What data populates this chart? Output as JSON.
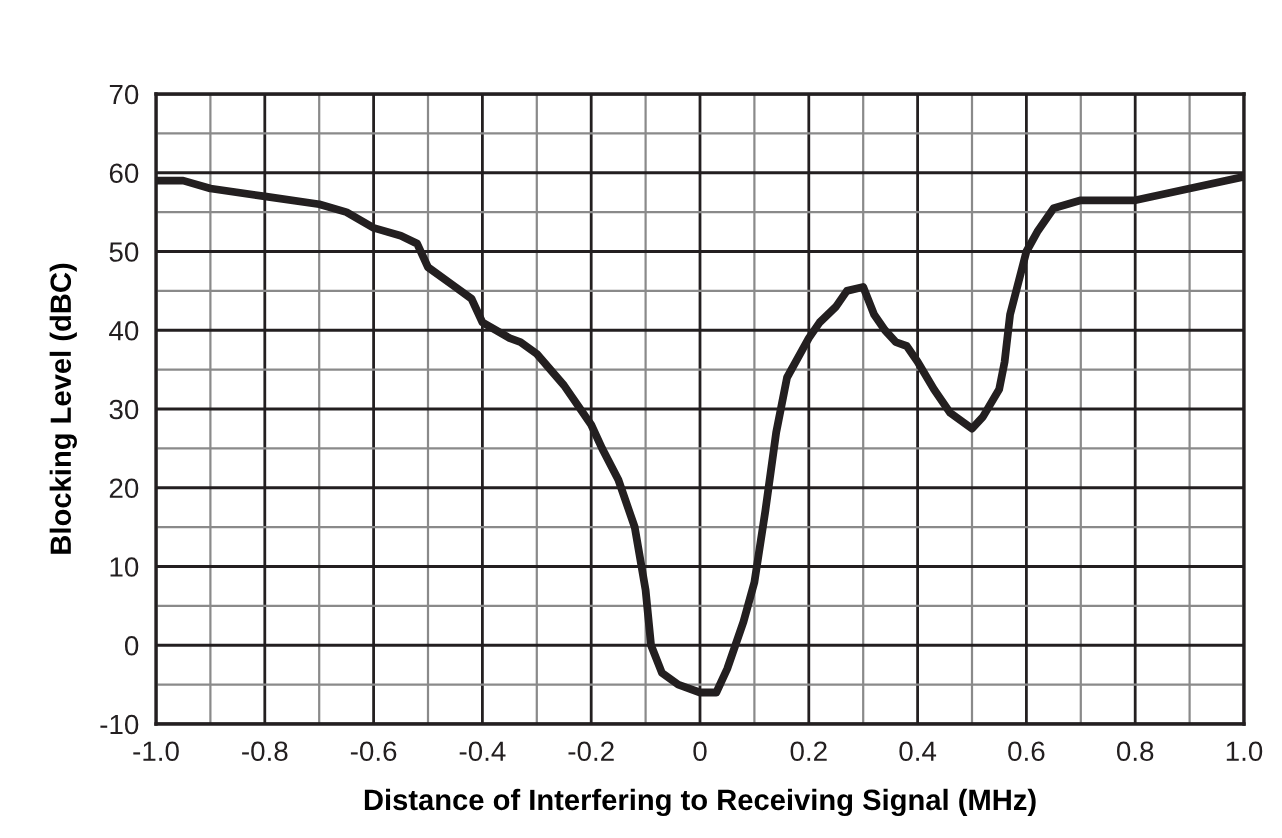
{
  "chart_data": {
    "type": "line",
    "xlabel": "Distance of Interfering to Receiving Signal (MHz)",
    "ylabel": "Blocking Level (dBC)",
    "xlim": [
      -1.0,
      1.0
    ],
    "ylim": [
      -10,
      70
    ],
    "xticks": [
      {
        "value": -1.0,
        "label": "-1.0"
      },
      {
        "value": -0.8,
        "label": "-0.8"
      },
      {
        "value": -0.6,
        "label": "-0.6"
      },
      {
        "value": -0.4,
        "label": "-0.4"
      },
      {
        "value": -0.2,
        "label": "-0.2"
      },
      0,
      {
        "value": 0.2,
        "label": "0.2"
      },
      {
        "value": 0.4,
        "label": "0.4"
      },
      {
        "value": 0.6,
        "label": "0.6"
      },
      {
        "value": 0.8,
        "label": "0.8"
      },
      {
        "value": 1.0,
        "label": "1.0"
      }
    ],
    "yticks": [
      -10,
      0,
      10,
      20,
      30,
      40,
      50,
      60,
      70
    ],
    "grid": true,
    "marker": "none",
    "line_style": "solid",
    "legend": false,
    "series": [
      {
        "color": "#231f20",
        "x": [
          -1.0,
          -0.95,
          -0.9,
          -0.8,
          -0.7,
          -0.65,
          -0.6,
          -0.55,
          -0.52,
          -0.5,
          -0.45,
          -0.42,
          -0.4,
          -0.35,
          -0.33,
          -0.3,
          -0.25,
          -0.2,
          -0.18,
          -0.15,
          -0.12,
          -0.1,
          -0.09,
          -0.07,
          -0.04,
          0,
          0.03,
          0.05,
          0.08,
          0.1,
          0.12,
          0.14,
          0.16,
          0.2,
          0.22,
          0.25,
          0.27,
          0.3,
          0.32,
          0.34,
          0.36,
          0.38,
          0.4,
          0.43,
          0.46,
          0.5,
          0.52,
          0.55,
          0.56,
          0.57,
          0.6,
          0.62,
          0.65,
          0.7,
          0.8,
          0.9,
          1.0
        ],
        "values": [
          59,
          59,
          58,
          57,
          56,
          55,
          53,
          52,
          51,
          48,
          45.5,
          44,
          41,
          39,
          38.5,
          37,
          33,
          28,
          25,
          21,
          15,
          7,
          0,
          -3.5,
          -5,
          -6,
          -6,
          -3,
          3,
          8,
          17,
          27,
          34,
          39,
          41,
          43,
          45,
          45.5,
          42,
          40,
          38.5,
          38,
          36,
          32.5,
          29.5,
          27.5,
          29,
          32.5,
          36,
          42,
          50,
          52.5,
          55.5,
          56.5,
          56.5,
          58,
          59.5
        ]
      }
    ]
  }
}
